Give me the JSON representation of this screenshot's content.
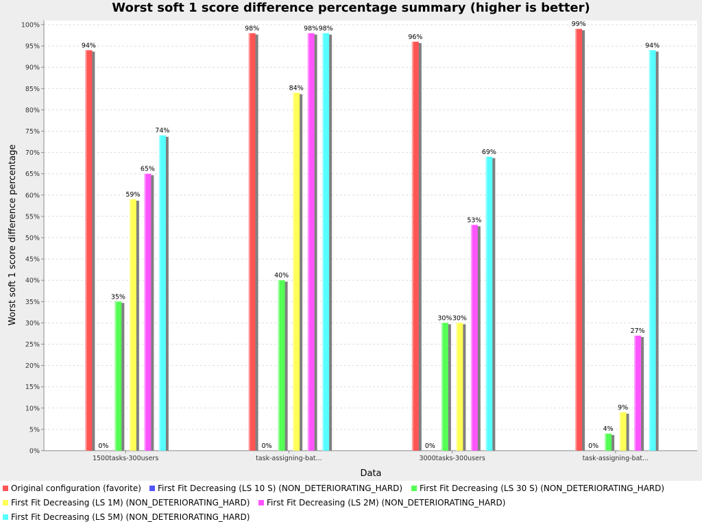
{
  "chart_data": {
    "type": "bar",
    "title": "Worst soft 1 score difference percentage summary (higher is better)",
    "xlabel": "Data",
    "ylabel": "Worst soft 1 score difference percentage",
    "ylim": [
      0,
      100
    ],
    "y_ticks": [
      "0%",
      "5%",
      "10%",
      "15%",
      "20%",
      "25%",
      "30%",
      "35%",
      "40%",
      "45%",
      "50%",
      "55%",
      "60%",
      "65%",
      "70%",
      "75%",
      "80%",
      "85%",
      "90%",
      "95%",
      "100%"
    ],
    "categories": [
      "1500tasks-300users",
      "task-assigning-bat...",
      "3000tasks-300users",
      "task-assigning-bat..."
    ],
    "grid": true,
    "legend_position": "bottom",
    "series": [
      {
        "name": "Original configuration (favorite)",
        "color": "#ff5555",
        "values": [
          94,
          98,
          96,
          99
        ],
        "labels": [
          "94%",
          "98%",
          "96%",
          "99%"
        ]
      },
      {
        "name": "First Fit Decreasing (LS 10 S) (NON_DETERIORATING_HARD)",
        "color": "#5555ff",
        "values": [
          0,
          0,
          0,
          0
        ],
        "labels": [
          "0%",
          "0%",
          "0%",
          "0%"
        ]
      },
      {
        "name": "First Fit Decreasing (LS 30 S) (NON_DETERIORATING_HARD)",
        "color": "#55ff55",
        "values": [
          35,
          40,
          30,
          4
        ],
        "labels": [
          "35%",
          "40%",
          "30%",
          "4%"
        ]
      },
      {
        "name": "First Fit Decreasing (LS 1M) (NON_DETERIORATING_HARD)",
        "color": "#ffff55",
        "values": [
          59,
          84,
          30,
          9
        ],
        "labels": [
          "59%",
          "84%",
          "30%",
          "9%"
        ]
      },
      {
        "name": "First Fit Decreasing (LS 2M) (NON_DETERIORATING_HARD)",
        "color": "#ff55ff",
        "values": [
          65,
          98,
          53,
          27
        ],
        "labels": [
          "65%",
          "98%",
          "53%",
          "27%"
        ]
      },
      {
        "name": "First Fit Decreasing (LS 5M) (NON_DETERIORATING_HARD)",
        "color": "#55ffff",
        "values": [
          74,
          98,
          69,
          94
        ],
        "labels": [
          "74%",
          "98%",
          "69%",
          "94%"
        ]
      }
    ]
  }
}
